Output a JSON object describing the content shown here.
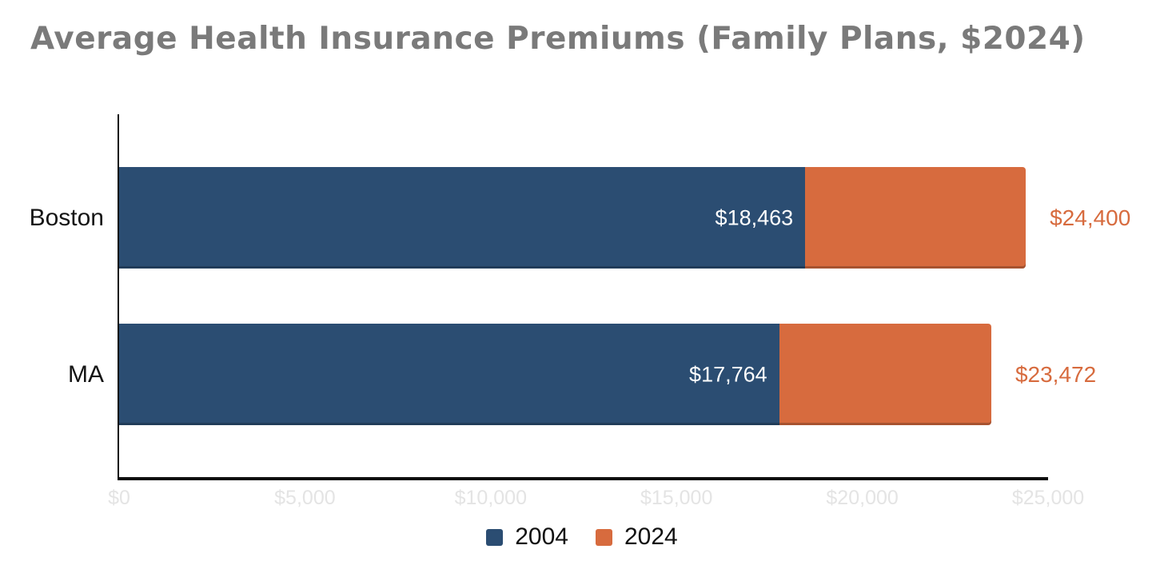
{
  "colors": {
    "series_2004": "#2b4d72",
    "series_2024": "#d76b3e",
    "title_text": "#7a7a7a",
    "axis_line": "#0d0d0d",
    "tick_text": "#e4e4e4",
    "inside_label_text": "#ffffff",
    "category_text": "#141414",
    "legend_text": "#111111"
  },
  "chart_data": {
    "type": "bar",
    "orientation": "horizontal",
    "overlay_note": "Each category shows one bar from $0: blue portion spans 0 to the 2004 value, orange portion spans from the 2004 value to the 2024 value.",
    "title": "Average Health Insurance Premiums (Family Plans, $2024)",
    "categories": [
      "Boston",
      "MA"
    ],
    "series": [
      {
        "name": "2004",
        "color": "#2b4d72",
        "values": [
          18463,
          17764
        ],
        "labels": [
          "$18,463",
          "$17,764"
        ]
      },
      {
        "name": "2024",
        "color": "#d76b3e",
        "values": [
          24400,
          23472
        ],
        "labels": [
          "$24,400",
          "$23,472"
        ]
      }
    ],
    "xlim": [
      0,
      25000
    ],
    "xticks": [
      0,
      5000,
      10000,
      15000,
      20000,
      25000
    ],
    "xtick_labels": [
      "$0",
      "$5,000",
      "$10,000",
      "$15,000",
      "$20,000",
      "$25,000"
    ],
    "grid": false,
    "legend_position": "bottom-center"
  }
}
